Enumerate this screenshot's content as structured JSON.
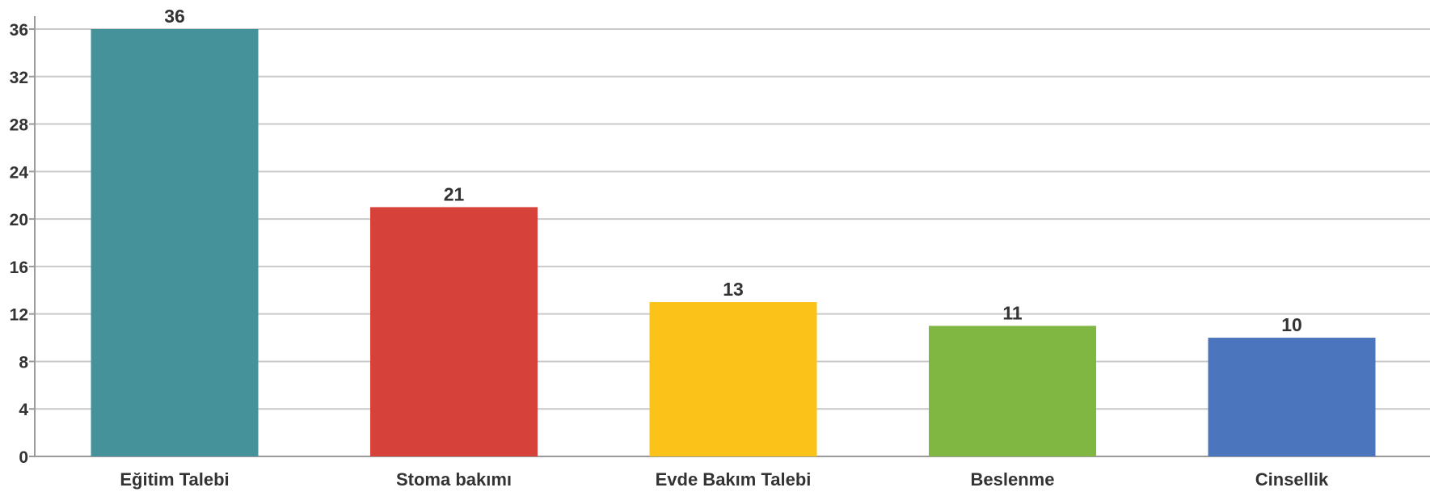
{
  "chart_data": {
    "type": "bar",
    "categories": [
      "Eğitim Talebi",
      "Stoma bakımı",
      "Evde Bakım Talebi",
      "Beslenme",
      "Cinsellik"
    ],
    "values": [
      36,
      21,
      13,
      11,
      10
    ],
    "colors": [
      "#45929b",
      "#d6423a",
      "#fbc31a",
      "#80b642",
      "#4b76bd"
    ],
    "yticks": [
      "0",
      "4",
      "8",
      "12",
      "16",
      "20",
      "24",
      "28",
      "32",
      "36"
    ],
    "ylim": [
      0,
      36
    ],
    "grid": true,
    "data_labels": true,
    "title": "",
    "xlabel": "",
    "ylabel": ""
  }
}
